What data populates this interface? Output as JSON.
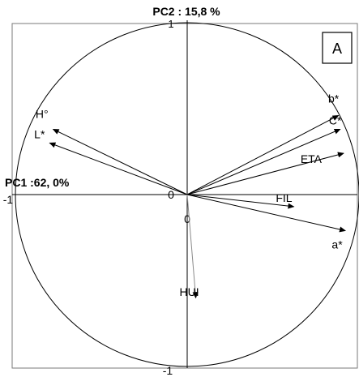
{
  "chart_data": {
    "type": "scatter",
    "subtype": "pca-correlation-circle",
    "panel_label": "A",
    "x_axis_label": "PC1 :62, 0%",
    "y_axis_label": "PC2 : 15,8  %",
    "tick_labels": {
      "x_min": "-1",
      "y_max": "1",
      "y_min": "-1",
      "origin_left": "0",
      "origin_below": "0"
    },
    "xlim": [
      -1,
      1
    ],
    "ylim": [
      -1,
      1
    ],
    "vectors": [
      {
        "name": "H°",
        "x": -0.78,
        "y": 0.38
      },
      {
        "name": "L*",
        "x": -0.8,
        "y": 0.3
      },
      {
        "name": "b*",
        "x": 0.88,
        "y": 0.46
      },
      {
        "name": "C*",
        "x": 0.89,
        "y": 0.38
      },
      {
        "name": "ETA",
        "x": 0.91,
        "y": 0.24
      },
      {
        "name": "FIL",
        "x": 0.62,
        "y": -0.07
      },
      {
        "name": "a*",
        "x": 0.92,
        "y": -0.21
      },
      {
        "name": "HUI",
        "x": 0.05,
        "y": -0.6
      }
    ]
  }
}
